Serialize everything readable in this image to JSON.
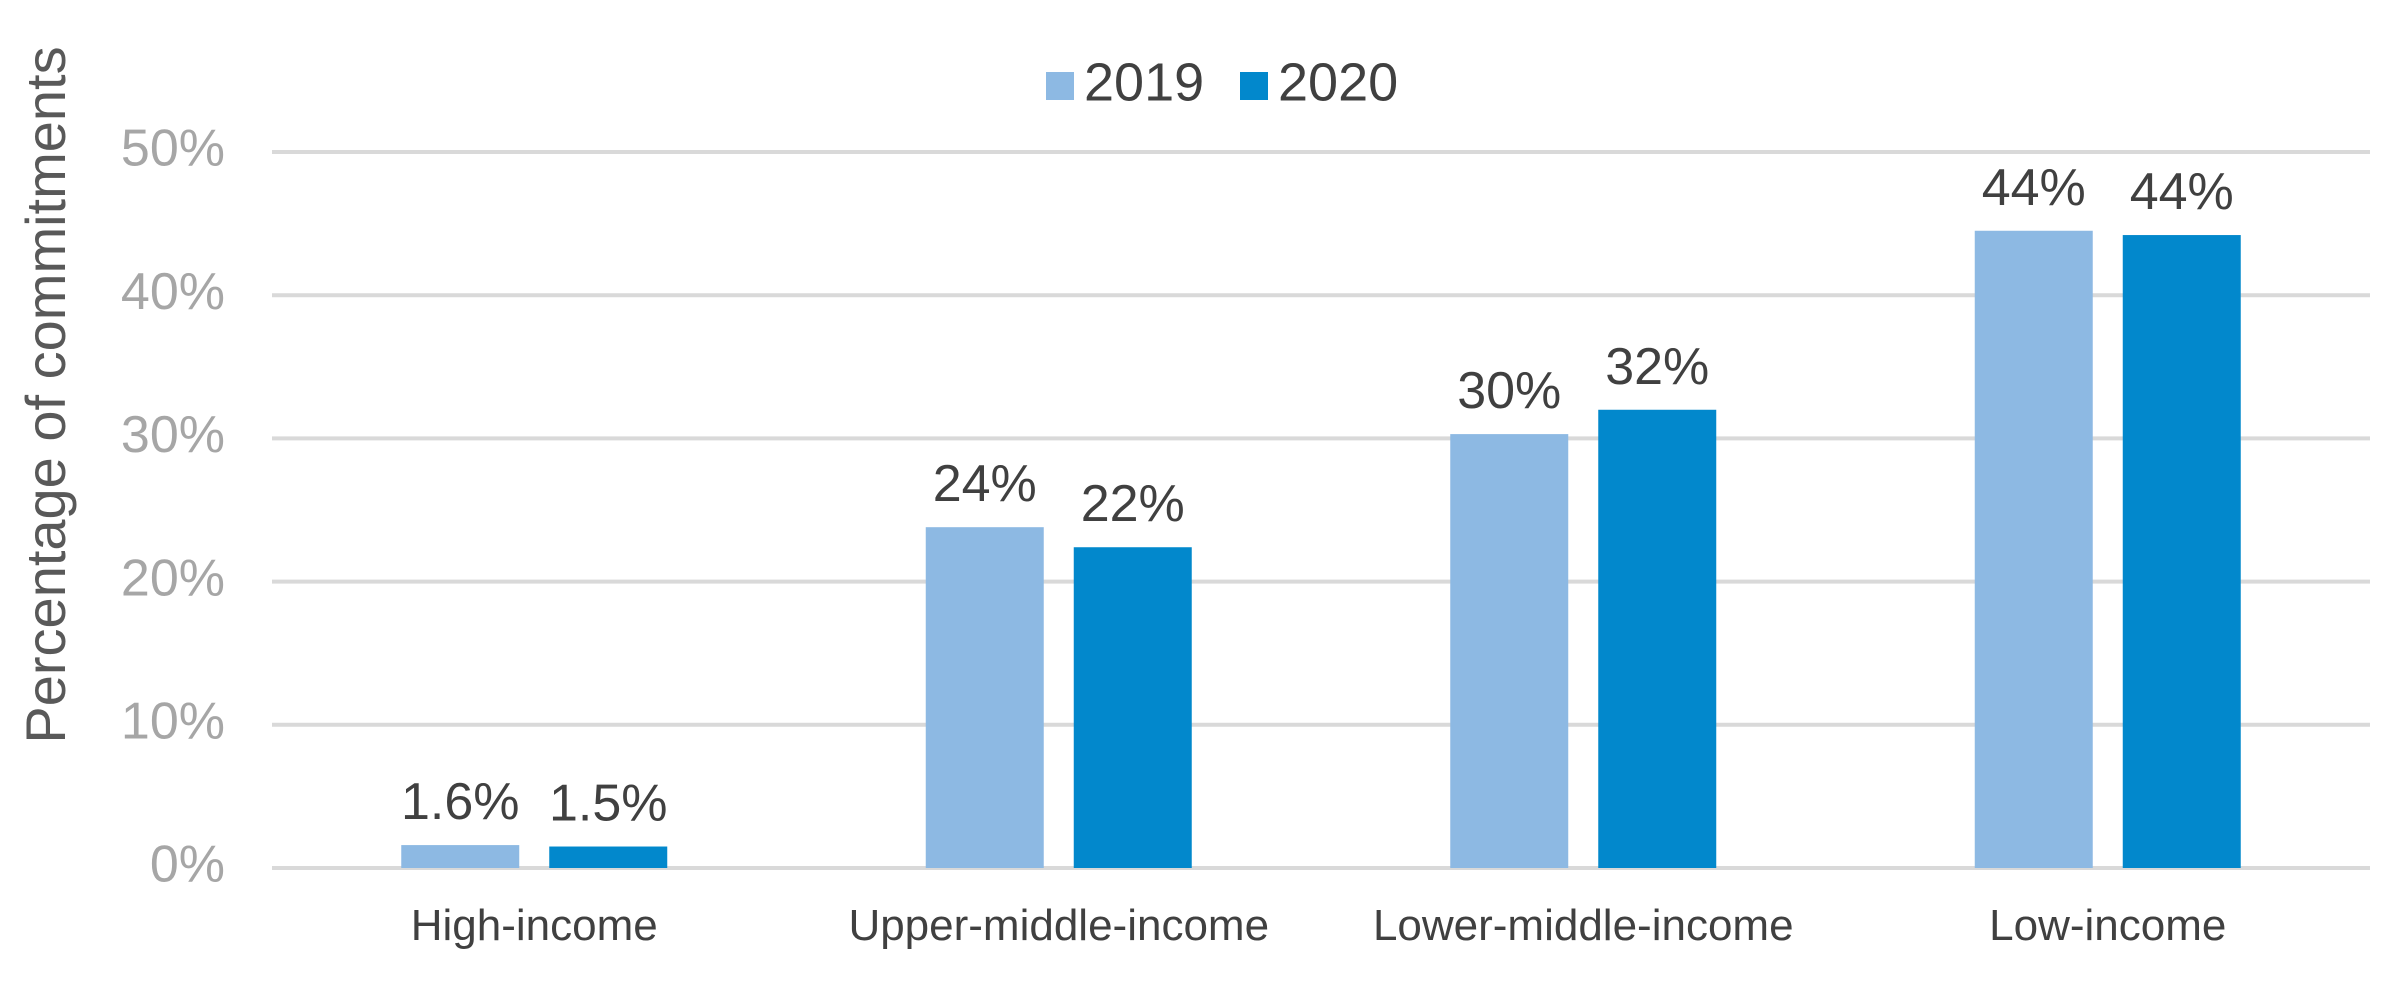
{
  "chart_data": {
    "type": "bar",
    "categories": [
      "High-income",
      "Upper-middle-income",
      "Lower-middle-income",
      "Low-income"
    ],
    "series": [
      {
        "name": "2019",
        "color": "#8db9e3",
        "values": [
          1.6,
          23.8,
          30.3,
          44.5
        ],
        "labels": [
          "1.6%",
          "24%",
          "30%",
          "44%"
        ]
      },
      {
        "name": "2020",
        "color": "#0288cc",
        "values": [
          1.5,
          22.4,
          32.0,
          44.2
        ],
        "labels": [
          "1.5%",
          "22%",
          "32%",
          "44%"
        ]
      }
    ],
    "ylabel": "Percentage of commitments",
    "xlabel": "",
    "ylim": [
      0,
      50
    ],
    "yticks": [
      0,
      10,
      20,
      30,
      40,
      50
    ],
    "ytick_labels": [
      "0%",
      "10%",
      "20%",
      "30%",
      "40%",
      "50%"
    ],
    "grid": true,
    "legend_position": "top-center"
  }
}
